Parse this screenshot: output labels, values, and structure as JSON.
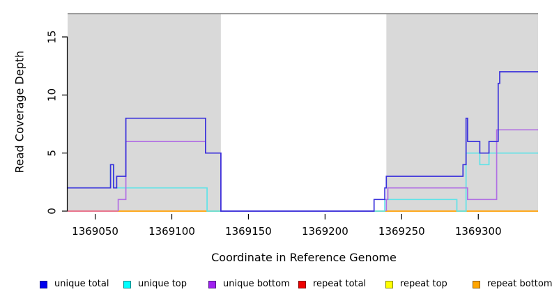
{
  "figure": {
    "background": "#ffffff",
    "plot_background_shaded": "#d9d9d9"
  },
  "chart_data": {
    "type": "line",
    "subtype": "step-coverage-plot",
    "title": "",
    "xlabel": "Coordinate in Reference Genome",
    "ylabel": "Read Coverage Depth",
    "xlim": [
      1369032,
      1369339
    ],
    "ylim": [
      0,
      17
    ],
    "x_ticks": [
      1369050,
      1369100,
      1369150,
      1369200,
      1369250,
      1369300
    ],
    "y_ticks": [
      0,
      5,
      10,
      15
    ],
    "grid": false,
    "reference_line": {
      "y": 17,
      "color": "#8f8f8f"
    },
    "shaded_regions": [
      {
        "name": "left-shaded-region",
        "x0": 1369032,
        "x1": 1369132,
        "color": "#d9d9d9"
      },
      {
        "name": "right-shaded-region",
        "x0": 1369240,
        "x1": 1369339,
        "color": "#d9d9d9"
      }
    ],
    "series": [
      {
        "name": "repeat top",
        "color": "#ffff00",
        "segments": [
          [
            [
              1369065,
              0
            ],
            [
              1369339,
              0
            ]
          ]
        ]
      },
      {
        "name": "repeat bottom",
        "color": "#ff9e1a",
        "segments": [
          [
            [
              1369065,
              0
            ],
            [
              1369339,
              0
            ]
          ]
        ]
      },
      {
        "name": "repeat total",
        "color": "#e8637f",
        "segments": [
          [
            [
              1369032,
              0
            ],
            [
              1369065,
              0
            ]
          ]
        ]
      },
      {
        "name": "unique top",
        "color": "#5fe3e8",
        "segments": [
          [
            [
              1369032,
              2
            ],
            [
              1369060,
              2
            ],
            [
              1369060,
              4
            ],
            [
              1369062,
              4
            ],
            [
              1369062,
              2
            ],
            [
              1369123,
              2
            ],
            [
              1369123,
              0
            ],
            [
              1369239,
              0
            ],
            [
              1369239,
              1
            ],
            [
              1369286,
              1
            ],
            [
              1369286,
              0
            ],
            [
              1369292,
              0
            ],
            [
              1369292,
              5
            ],
            [
              1369301,
              5
            ],
            [
              1369301,
              4
            ],
            [
              1369307,
              4
            ],
            [
              1369307,
              5
            ],
            [
              1369339,
              5
            ]
          ]
        ]
      },
      {
        "name": "unique bottom",
        "color": "#b16fe3",
        "segments": [
          [
            [
              1369065,
              0
            ],
            [
              1369065,
              1
            ],
            [
              1369070,
              1
            ],
            [
              1369070,
              6
            ],
            [
              1369122,
              6
            ],
            [
              1369122,
              5
            ],
            [
              1369132,
              5
            ],
            [
              1369132,
              0
            ],
            [
              1369232,
              0
            ]
          ],
          [
            [
              1369240,
              0
            ],
            [
              1369240,
              1
            ],
            [
              1369241,
              1
            ],
            [
              1369241,
              2
            ],
            [
              1369293,
              2
            ],
            [
              1369293,
              1
            ],
            [
              1369312,
              1
            ],
            [
              1369312,
              7
            ],
            [
              1369339,
              7
            ]
          ]
        ]
      },
      {
        "name": "unique total",
        "color": "#3a31db",
        "segments": [
          [
            [
              1369032,
              2
            ],
            [
              1369060,
              2
            ],
            [
              1369060,
              4
            ],
            [
              1369062,
              4
            ],
            [
              1369062,
              2
            ],
            [
              1369064,
              2
            ],
            [
              1369064,
              3
            ],
            [
              1369070,
              3
            ],
            [
              1369070,
              8
            ],
            [
              1369122,
              8
            ],
            [
              1369122,
              5
            ],
            [
              1369132,
              5
            ],
            [
              1369132,
              0
            ],
            [
              1369232,
              0
            ],
            [
              1369232,
              1
            ],
            [
              1369239,
              1
            ],
            [
              1369239,
              2
            ],
            [
              1369240,
              2
            ],
            [
              1369240,
              3
            ],
            [
              1369290,
              3
            ],
            [
              1369290,
              4
            ],
            [
              1369292,
              4
            ],
            [
              1369292,
              8
            ],
            [
              1369293,
              8
            ],
            [
              1369293,
              6
            ],
            [
              1369301,
              6
            ],
            [
              1369301,
              5
            ],
            [
              1369307,
              5
            ],
            [
              1369307,
              6
            ],
            [
              1369313,
              6
            ],
            [
              1369313,
              11
            ],
            [
              1369314,
              11
            ],
            [
              1369314,
              12
            ],
            [
              1369339,
              12
            ]
          ]
        ]
      }
    ]
  },
  "axes_text": {
    "x_label": "Coordinate in Reference Genome",
    "y_label": "Read Coverage Depth"
  },
  "legend": {
    "items": [
      {
        "label": "unique total",
        "fill": "#0000ee",
        "border": "#000090"
      },
      {
        "label": "unique top",
        "fill": "#00ffff",
        "border": "#008b8b"
      },
      {
        "label": "unique bottom",
        "fill": "#a020f0",
        "border": "#551a8b"
      },
      {
        "label": "repeat total",
        "fill": "#ee0000",
        "border": "#8b0000"
      },
      {
        "label": "repeat top",
        "fill": "#ffff00",
        "border": "#8b8b00"
      },
      {
        "label": "repeat bottom",
        "fill": "#ffa500",
        "border": "#8b5a00"
      }
    ]
  }
}
